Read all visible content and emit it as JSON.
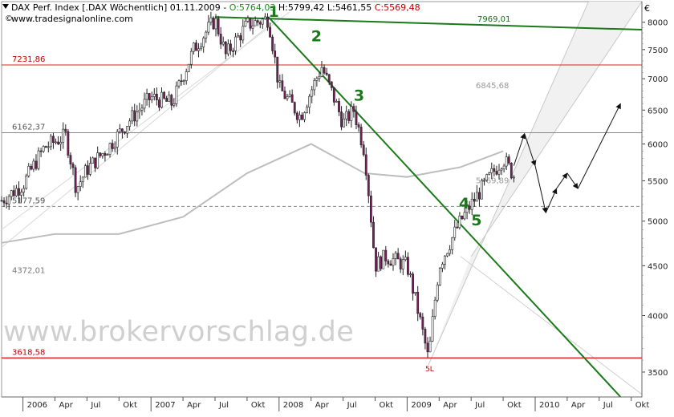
{
  "header": {
    "instrument": "DAX Perf. Index [.DAX Wöchentlich] 01.11.2009 - ",
    "open": "O:5764,03",
    "high": " H:5799,42 L:5461,55 ",
    "close": "C:5569,48",
    "url": "www.tradesignalonline.com",
    "copyright": "©",
    "currency": "€"
  },
  "watermark": "www.brokervorschlag.de",
  "colors": {
    "bull_candle": "#ffffff",
    "bear_candle": "#7a1f5c",
    "trendline": "#1a7a1a",
    "resistance": "#e02020",
    "ma_line": "#bdbdbd",
    "channel": "#c8c8c8"
  },
  "chart_data": {
    "type": "candlestick",
    "interval": "weekly",
    "ylim": [
      3300,
      8400
    ],
    "y_ticks": [
      3500,
      4000,
      4500,
      5000,
      5500,
      6000,
      6500,
      7000,
      7500,
      8000
    ],
    "y_tick_labels": [
      "3500",
      "4000",
      "4500",
      "5000",
      "5500",
      "6000",
      "6500",
      "7000",
      "7500",
      "8000"
    ],
    "x_tick_labels": [
      "2006",
      "Apr",
      "Jul",
      "Okt",
      "2007",
      "Apr",
      "Jul",
      "Okt",
      "2008",
      "Apr",
      "Jul",
      "Okt",
      "2009",
      "Apr",
      "Jul",
      "Okt",
      "2010",
      "Apr",
      "Jul",
      "Okt"
    ],
    "x_tick_dates": [
      "2006-01",
      "2006-04",
      "2006-07",
      "2006-10",
      "2007-01",
      "2007-04",
      "2007-07",
      "2007-10",
      "2008-01",
      "2008-04",
      "2008-07",
      "2008-10",
      "2009-01",
      "2009-04",
      "2009-07",
      "2009-10",
      "2010-01",
      "2010-04",
      "2010-07",
      "2010-10"
    ],
    "price_path": [
      [
        "2005-11",
        5250
      ],
      [
        "2006-01",
        5450
      ],
      [
        "2006-03",
        5950
      ],
      [
        "2006-05",
        6120
      ],
      [
        "2006-06",
        5400
      ],
      [
        "2006-07",
        5650
      ],
      [
        "2006-09",
        5950
      ],
      [
        "2006-11",
        6350
      ],
      [
        "2007-01",
        6700
      ],
      [
        "2007-03",
        6600
      ],
      [
        "2007-05",
        7500
      ],
      [
        "2007-07",
        8050
      ],
      [
        "2007-08",
        7400
      ],
      [
        "2007-10",
        7950
      ],
      [
        "2007-12",
        8070
      ],
      [
        "2008-01",
        6850
      ],
      [
        "2008-03",
        6400
      ],
      [
        "2008-05",
        7200
      ],
      [
        "2008-07",
        6300
      ],
      [
        "2008-08",
        6500
      ],
      [
        "2008-09",
        5900
      ],
      [
        "2008-10",
        4500
      ],
      [
        "2008-11",
        4600
      ],
      [
        "2009-01",
        4500
      ],
      [
        "2009-03",
        3600
      ],
      [
        "2009-04",
        4500
      ],
      [
        "2009-06",
        5000
      ],
      [
        "2009-08",
        5400
      ],
      [
        "2009-10",
        5800
      ],
      [
        "2009-11",
        5569
      ]
    ],
    "horizontal_levels": [
      {
        "label": "7231,86",
        "value": 7231.86,
        "style": "red"
      },
      {
        "label": "6162,37",
        "value": 6162.37,
        "style": "gray"
      },
      {
        "label": "5177,59",
        "value": 5177.59,
        "style": "dashed"
      },
      {
        "label": "3618,58",
        "value": 3618.58,
        "style": "red-bold"
      }
    ],
    "level_labels_right": [
      {
        "label": "7969,01",
        "value": 7969.01
      },
      {
        "label": "6845,68",
        "value": 6845.68
      },
      {
        "label": "5469,89",
        "value": 5469.89
      }
    ],
    "secondary_labels": [
      {
        "label": "4372,01",
        "value": 4372.01
      }
    ],
    "wave_labels": [
      {
        "label": "1",
        "date": "2007-12",
        "value": 8100
      },
      {
        "label": "2",
        "date": "2008-04",
        "value": 7650
      },
      {
        "label": "3",
        "date": "2008-08",
        "value": 6650
      },
      {
        "label": "4",
        "date": "2009-06",
        "value": 5150
      },
      {
        "label": "5",
        "date": "2009-07",
        "value": 4950
      }
    ],
    "low_marker": {
      "label": "5L",
      "date": "2009-03",
      "value": 3600
    },
    "trendlines": [
      {
        "name": "long-term resistance",
        "from": [
          "2007-07",
          8100
        ],
        "to": [
          "2010-11",
          7860
        ]
      },
      {
        "name": "downtrend",
        "from": [
          "2007-12",
          8100
        ],
        "to": [
          "2010-09",
          3300
        ]
      }
    ],
    "moving_average": [
      [
        "2005-11",
        4750
      ],
      [
        "2006-04",
        4850
      ],
      [
        "2006-10",
        4850
      ],
      [
        "2007-04",
        5050
      ],
      [
        "2007-10",
        5600
      ],
      [
        "2008-04",
        6000
      ],
      [
        "2008-09",
        5600
      ],
      [
        "2009-01",
        5550
      ],
      [
        "2009-06",
        5680
      ],
      [
        "2009-10",
        5900
      ]
    ],
    "projection_path": [
      [
        "2009-11",
        5700
      ],
      [
        "2009-12",
        6150
      ],
      [
        "2010-01",
        5700
      ],
      [
        "2010-02",
        5100
      ],
      [
        "2010-03",
        5400
      ],
      [
        "2010-04",
        5600
      ],
      [
        "2010-05",
        5400
      ],
      [
        "2010-09",
        6600
      ]
    ]
  }
}
